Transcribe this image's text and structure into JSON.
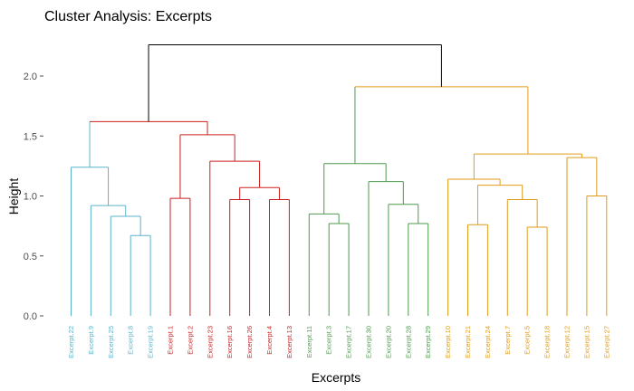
{
  "chart_data": {
    "type": "dendrogram",
    "title": "Cluster Analysis: Excerpts",
    "xlabel": "Excerpts",
    "ylabel": "Height",
    "ylim": [
      0,
      2.3
    ],
    "yticks": [
      0.0,
      0.5,
      1.0,
      1.5,
      2.0
    ],
    "ytick_labels": [
      "0.0",
      "0.5",
      "1.0",
      "1.5",
      "2.0"
    ],
    "grid": false,
    "root_color": "#000000",
    "leaves": [
      {
        "label": "Excerpt.22",
        "color": "#5bb3c9"
      },
      {
        "label": "Excerpt.9",
        "color": "#5bb3c9"
      },
      {
        "label": "Excerpt.25",
        "color": "#5bb3c9"
      },
      {
        "label": "Excerpt.8",
        "color": "#5bb3c9"
      },
      {
        "label": "Excerpt.19",
        "color": "#5bb3c9"
      },
      {
        "label": "Excerpt.1",
        "color": "#cc1f1f"
      },
      {
        "label": "Excerpt.2",
        "color": "#cc1f1f"
      },
      {
        "label": "Excerpt.23",
        "color": "#cc1f1f"
      },
      {
        "label": "Excerpt.16",
        "color": "#cc1f1f"
      },
      {
        "label": "Excerpt.26",
        "color": "#cc1f1f"
      },
      {
        "label": "Excerpt.4",
        "color": "#cc1f1f"
      },
      {
        "label": "Excerpt.13",
        "color": "#cc1f1f"
      },
      {
        "label": "Excerpt.11",
        "color": "#4e9a4e"
      },
      {
        "label": "Excerpt.3",
        "color": "#4e9a4e"
      },
      {
        "label": "Excerpt.17",
        "color": "#4e9a4e"
      },
      {
        "label": "Excerpt.30",
        "color": "#4e9a4e"
      },
      {
        "label": "Excerpt.20",
        "color": "#4e9a4e"
      },
      {
        "label": "Excerpt.28",
        "color": "#4e9a4e"
      },
      {
        "label": "Excerpt.29",
        "color": "#4e9a4e"
      },
      {
        "label": "Excerpt.10",
        "color": "#e09a1a"
      },
      {
        "label": "Excerpt.21",
        "color": "#e09a1a"
      },
      {
        "label": "Excerpt.24",
        "color": "#e09a1a"
      },
      {
        "label": "Excerpt.7",
        "color": "#e09a1a"
      },
      {
        "label": "Excerpt.5",
        "color": "#e09a1a"
      },
      {
        "label": "Excerpt.18",
        "color": "#e09a1a"
      },
      {
        "label": "Excerpt.12",
        "color": "#e09a1a"
      },
      {
        "label": "Excerpt.15",
        "color": "#e09a1a"
      },
      {
        "label": "Excerpt.27",
        "color": "#e09a1a"
      }
    ],
    "merges": [
      {
        "id": "b1",
        "left": 3,
        "right": 4,
        "height": 0.67,
        "color": "#5bb3c9"
      },
      {
        "id": "b2",
        "left": 2,
        "right": "b1",
        "height": 0.83,
        "color": "#5bb3c9"
      },
      {
        "id": "b3",
        "left": 1,
        "right": "b2",
        "height": 0.92,
        "color": "#5bb3c9"
      },
      {
        "id": "b4",
        "left": 0,
        "right": "b3",
        "height": 1.24,
        "color": "#5bb3c9"
      },
      {
        "id": "r1",
        "left": 5,
        "right": 6,
        "height": 0.98,
        "color": "#cc1f1f"
      },
      {
        "id": "r2",
        "left": 8,
        "right": 9,
        "height": 0.97,
        "color": "#cc1f1f"
      },
      {
        "id": "r3",
        "left": 10,
        "right": 11,
        "height": 0.97,
        "color": "#cc1f1f"
      },
      {
        "id": "r4",
        "left": "r2",
        "right": "r3",
        "height": 1.07,
        "color": "#cc1f1f"
      },
      {
        "id": "r5",
        "left": 7,
        "right": "r4",
        "height": 1.29,
        "color": "#cc1f1f"
      },
      {
        "id": "r6",
        "left": "r1",
        "right": "r5",
        "height": 1.51,
        "color": "#cc1f1f"
      },
      {
        "id": "a1",
        "left": "b4",
        "right": "r6",
        "height": 1.62,
        "color": "#cc1f1f",
        "left_color": "#5bb3c9"
      },
      {
        "id": "g1",
        "left": 13,
        "right": 14,
        "height": 0.77,
        "color": "#4e9a4e"
      },
      {
        "id": "g2",
        "left": 12,
        "right": "g1",
        "height": 0.85,
        "color": "#4e9a4e"
      },
      {
        "id": "g3",
        "left": 17,
        "right": 18,
        "height": 0.77,
        "color": "#4e9a4e"
      },
      {
        "id": "g4",
        "left": 16,
        "right": "g3",
        "height": 0.93,
        "color": "#4e9a4e"
      },
      {
        "id": "g5",
        "left": 15,
        "right": "g4",
        "height": 1.12,
        "color": "#4e9a4e"
      },
      {
        "id": "g6",
        "left": "g2",
        "right": "g5",
        "height": 1.27,
        "color": "#4e9a4e"
      },
      {
        "id": "o1",
        "left": 20,
        "right": 21,
        "height": 0.76,
        "color": "#e09a1a"
      },
      {
        "id": "o2",
        "left": 23,
        "right": 24,
        "height": 0.74,
        "color": "#e09a1a"
      },
      {
        "id": "o3",
        "left": 22,
        "right": "o2",
        "height": 0.97,
        "color": "#e09a1a"
      },
      {
        "id": "o4",
        "left": "o1",
        "right": "o3",
        "height": 1.09,
        "color": "#e09a1a"
      },
      {
        "id": "o5",
        "left": 19,
        "right": "o4",
        "height": 1.14,
        "color": "#e09a1a"
      },
      {
        "id": "o6",
        "left": 26,
        "right": 27,
        "height": 1.0,
        "color": "#e09a1a"
      },
      {
        "id": "o7",
        "left": 25,
        "right": "o6",
        "height": 1.32,
        "color": "#e09a1a"
      },
      {
        "id": "o8",
        "left": "o5",
        "right": "o7",
        "height": 1.35,
        "color": "#e09a1a"
      },
      {
        "id": "a2",
        "left": "g6",
        "right": "o8",
        "height": 1.91,
        "color": "#e09a1a",
        "left_color": "#4e9a4e"
      },
      {
        "id": "root",
        "left": "a1",
        "right": "a2",
        "height": 2.26,
        "color": "#000000"
      }
    ]
  }
}
